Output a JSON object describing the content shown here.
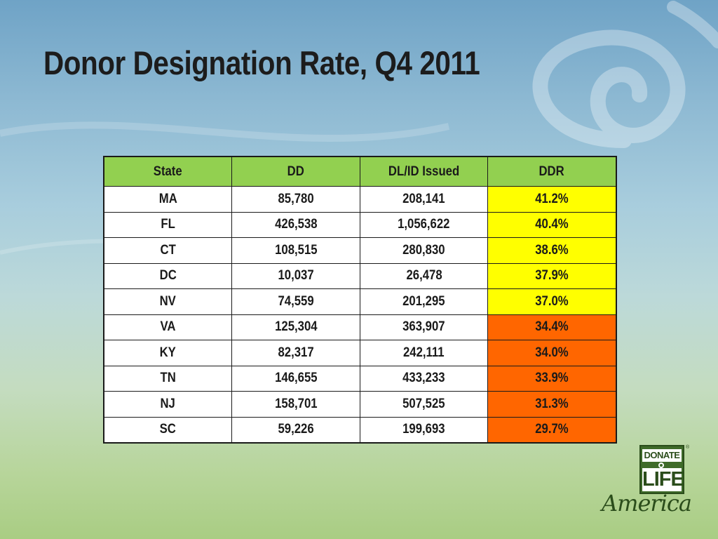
{
  "slide": {
    "title": "Donor Designation Rate, Q4 2011"
  },
  "table": {
    "columns": [
      "State",
      "DD",
      "DL/ID Issued",
      "DDR"
    ],
    "rows": [
      [
        "MA",
        "85,780",
        "208,141",
        "41.2%"
      ],
      [
        "FL",
        "426,538",
        "1,056,622",
        "40.4%"
      ],
      [
        "CT",
        "108,515",
        "280,830",
        "38.6%"
      ],
      [
        "DC",
        "10,037",
        "26,478",
        "37.9%"
      ],
      [
        "NV",
        "74,559",
        "201,295",
        "37.0%"
      ],
      [
        "VA",
        "125,304",
        "363,907",
        "34.4%"
      ],
      [
        "KY",
        "82,317",
        "242,111",
        "34.0%"
      ],
      [
        "TN",
        "146,655",
        "433,233",
        "33.9%"
      ],
      [
        "NJ",
        "158,701",
        "507,525",
        "31.3%"
      ],
      [
        "SC",
        "59,226",
        "199,693",
        "29.7%"
      ]
    ],
    "ddr_highlight": [
      "yellow",
      "yellow",
      "yellow",
      "yellow",
      "yellow",
      "orange",
      "orange",
      "orange",
      "orange",
      "orange"
    ]
  },
  "colors": {
    "header_fill": "#92d050",
    "ddr_high_fill": "#ffff00",
    "ddr_low_fill": "#ff6600"
  },
  "logo": {
    "line1": "DONATE",
    "line2": "LIFE",
    "script": "America",
    "registered_mark": "®"
  }
}
